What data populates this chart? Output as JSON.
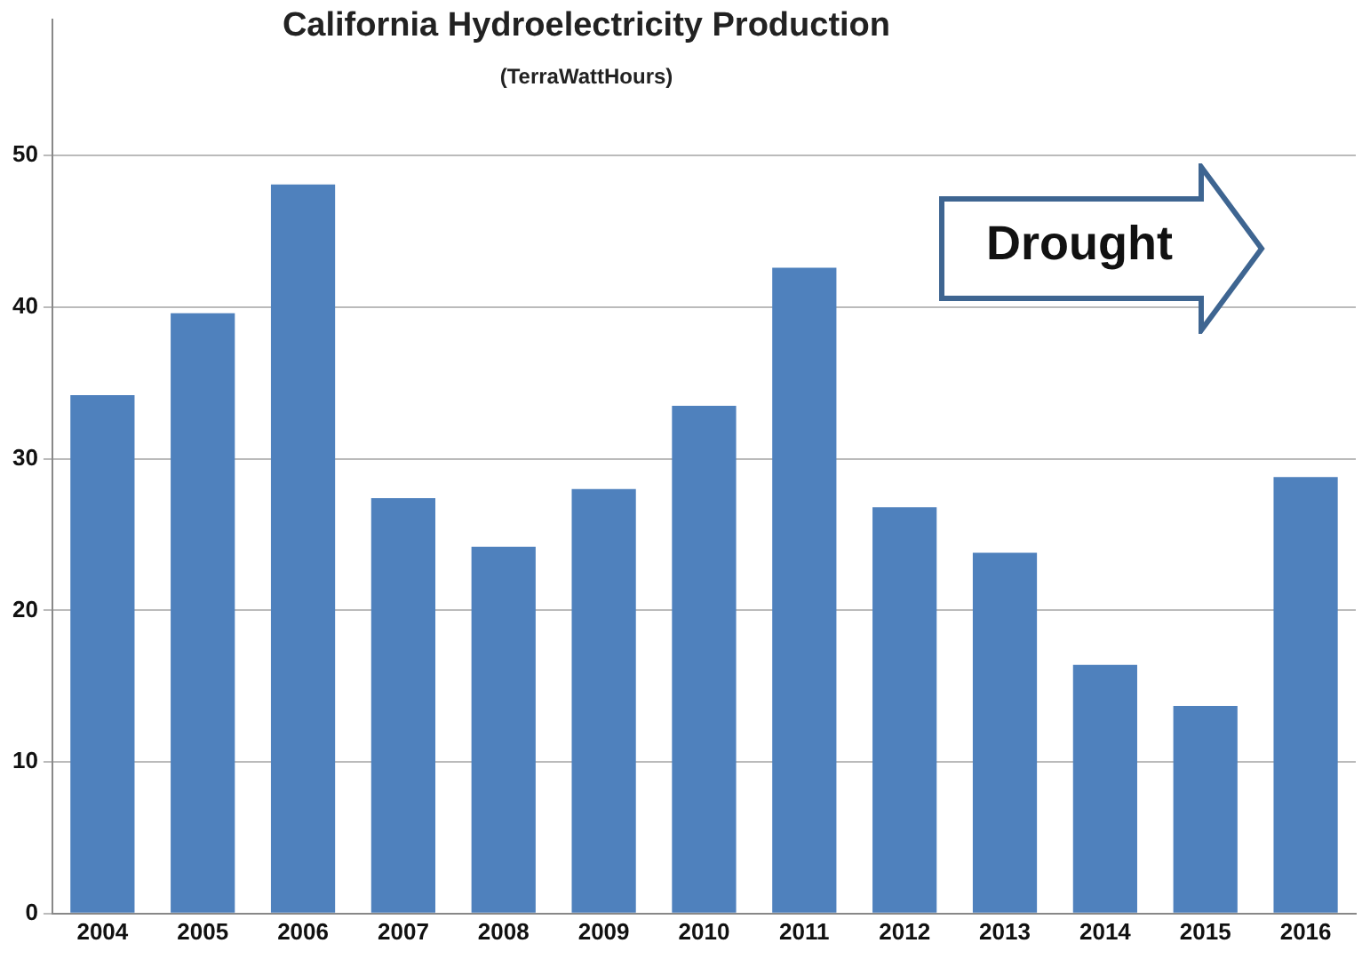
{
  "chart_data": {
    "type": "bar",
    "title": "California Hydroelectricity Production",
    "subtitle": "(TerraWattHours)",
    "categories": [
      "2004",
      "2005",
      "2006",
      "2007",
      "2008",
      "2009",
      "2010",
      "2011",
      "2012",
      "2013",
      "2014",
      "2015",
      "2016"
    ],
    "values": [
      34.2,
      39.6,
      48.1,
      27.4,
      24.2,
      28.0,
      33.5,
      42.6,
      26.8,
      23.8,
      16.4,
      13.7,
      28.8
    ],
    "color": "#4f81bd",
    "ylim": [
      0,
      59
    ],
    "yticks": [
      0,
      10,
      20,
      30,
      40,
      50
    ],
    "grid": "y",
    "legend": false,
    "annotations": [
      "Drought"
    ]
  }
}
